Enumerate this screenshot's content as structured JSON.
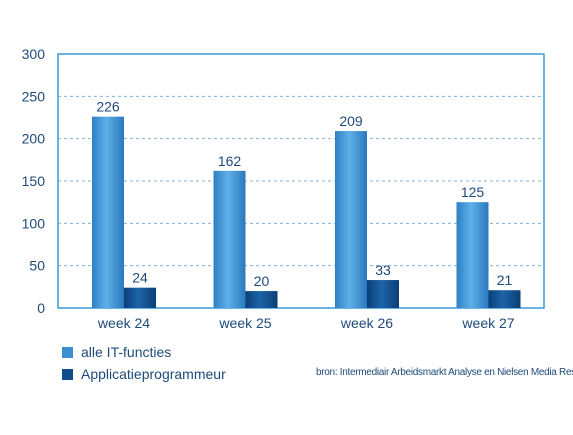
{
  "chart_data": {
    "type": "bar",
    "categories": [
      "week 24",
      "week 25",
      "week 26",
      "week 27"
    ],
    "series": [
      {
        "name": "alle IT-functies",
        "values": [
          226,
          162,
          209,
          125
        ],
        "color": "#3a8fd0"
      },
      {
        "name": "Applicatieprogrammeur",
        "values": [
          24,
          20,
          33,
          21
        ],
        "color": "#0f4c8c"
      }
    ],
    "yticks": [
      "300",
      "250",
      "200",
      "150",
      "100",
      "50",
      "0"
    ],
    "ylim": [
      0,
      300
    ],
    "grid": true,
    "legend_position": "bottom-left",
    "source": "bron: Intermediair Arbeidsmarkt Analyse en Nielsen Media Research",
    "colors": {
      "axis": "#3a9ad6",
      "grid": "#7fb6dd",
      "text": "#1e4a7a"
    }
  }
}
